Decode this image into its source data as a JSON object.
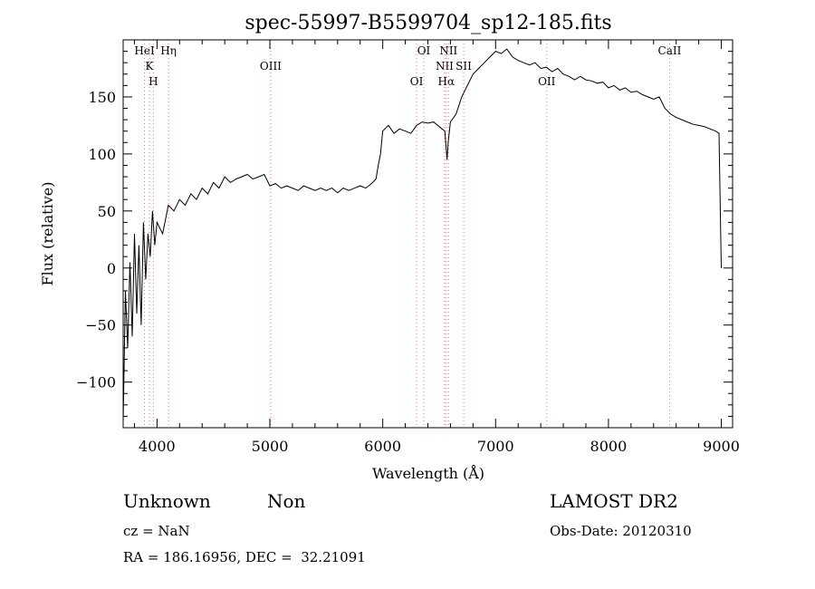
{
  "chart_data": {
    "type": "line",
    "title": "spec-55997-B5599704_sp12-185.fits",
    "xlabel": "Wavelength (Å)",
    "ylabel": "Flux (relative)",
    "xlim": [
      3700,
      9100
    ],
    "ylim": [
      -140,
      200
    ],
    "x_ticks": [
      4000,
      5000,
      6000,
      7000,
      8000,
      9000
    ],
    "y_ticks": [
      -100,
      -50,
      0,
      50,
      100,
      150
    ],
    "grid": false,
    "series": [
      {
        "x": [
          3700,
          3720,
          3740,
          3760,
          3780,
          3800,
          3820,
          3840,
          3860,
          3880,
          3900,
          3920,
          3940,
          3960,
          3980,
          4000,
          4050,
          4100,
          4150,
          4200,
          4250,
          4300,
          4350,
          4400,
          4450,
          4500,
          4550,
          4600,
          4650,
          4700,
          4750,
          4800,
          4850,
          4900,
          4950,
          5000,
          5050,
          5100,
          5150,
          5200,
          5250,
          5300,
          5350,
          5400,
          5450,
          5500,
          5550,
          5600,
          5650,
          5700,
          5750,
          5800,
          5850,
          5900,
          5940,
          5960,
          5980,
          6000,
          6050,
          6100,
          6150,
          6200,
          6250,
          6300,
          6350,
          6400,
          6450,
          6500,
          6550,
          6570,
          6580,
          6600,
          6650,
          6700,
          6750,
          6800,
          6850,
          6900,
          6950,
          7000,
          7050,
          7100,
          7150,
          7200,
          7250,
          7300,
          7350,
          7400,
          7450,
          7500,
          7550,
          7600,
          7650,
          7700,
          7750,
          7800,
          7850,
          7900,
          7950,
          8000,
          8050,
          8100,
          8150,
          8200,
          8250,
          8300,
          8350,
          8400,
          8450,
          8500,
          8550,
          8600,
          8650,
          8700,
          8750,
          8800,
          8850,
          8900,
          8950,
          8980,
          9000
        ],
        "y": [
          -135,
          -20,
          -70,
          5,
          -60,
          30,
          -40,
          20,
          -50,
          40,
          -10,
          30,
          10,
          50,
          20,
          40,
          30,
          55,
          50,
          60,
          55,
          65,
          60,
          70,
          65,
          75,
          70,
          80,
          75,
          78,
          80,
          82,
          78,
          80,
          82,
          72,
          74,
          70,
          72,
          70,
          68,
          72,
          70,
          68,
          70,
          68,
          70,
          66,
          70,
          68,
          70,
          72,
          70,
          74,
          78,
          90,
          100,
          120,
          125,
          118,
          122,
          120,
          118,
          125,
          128,
          127,
          128,
          124,
          120,
          95,
          110,
          128,
          135,
          150,
          160,
          170,
          175,
          180,
          185,
          190,
          188,
          192,
          185,
          182,
          180,
          178,
          180,
          175,
          176,
          172,
          175,
          170,
          168,
          165,
          168,
          165,
          164,
          162,
          163,
          158,
          160,
          156,
          158,
          154,
          155,
          152,
          150,
          148,
          150,
          140,
          135,
          132,
          130,
          128,
          126,
          125,
          124,
          122,
          120,
          118,
          0
        ]
      }
    ],
    "lines": [
      {
        "wavelength": 3889,
        "labels": [
          "HeI"
        ]
      },
      {
        "wavelength": 3933,
        "labels": [
          "K"
        ]
      },
      {
        "wavelength": 3968,
        "labels": [
          "H"
        ]
      },
      {
        "wavelength": 4102,
        "labels": [
          "Hη"
        ]
      },
      {
        "wavelength": 5007,
        "labels": [
          "OIII"
        ]
      },
      {
        "wavelength": 6300,
        "labels": [
          "OI"
        ]
      },
      {
        "wavelength": 6364,
        "labels": [
          "OI"
        ]
      },
      {
        "wavelength": 6548,
        "labels": [
          "NII"
        ]
      },
      {
        "wavelength": 6563,
        "labels": [
          "Hα"
        ]
      },
      {
        "wavelength": 6583,
        "labels": [
          "NII"
        ]
      },
      {
        "wavelength": 6717,
        "labels": [
          "SII"
        ]
      },
      {
        "wavelength": 7453,
        "labels": [
          "OII"
        ]
      },
      {
        "wavelength": 8542,
        "labels": [
          "CaII"
        ]
      }
    ]
  },
  "info": {
    "class": "Unknown",
    "subclass": "Non",
    "cz": "cz = NaN",
    "radec": "RA = 186.16956, DEC =  32.21091",
    "survey": "LAMOST DR2",
    "obsdate": "Obs-Date: 20120310"
  },
  "colors": {
    "line_marker": "#d98080",
    "spectrum": "#000000"
  }
}
